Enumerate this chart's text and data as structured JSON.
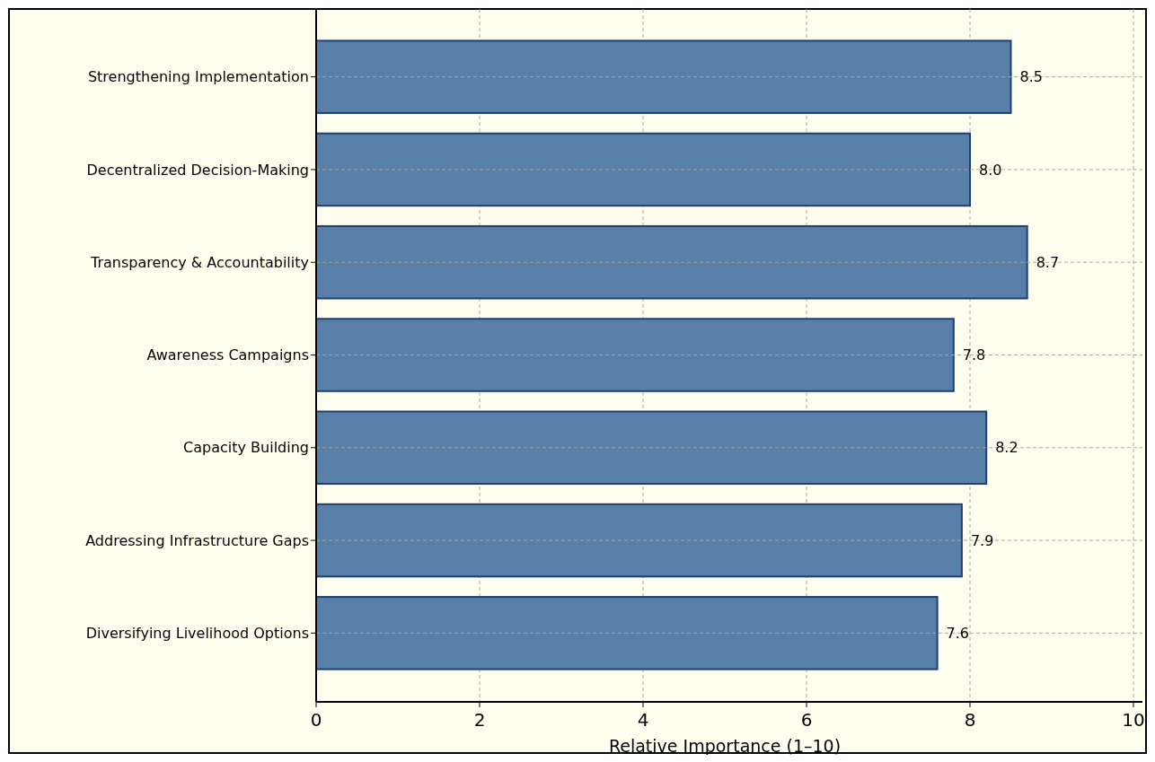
{
  "chart_data": {
    "type": "bar",
    "orientation": "horizontal",
    "xlabel": "Relative Importance (1–10)",
    "categories": [
      "Strengthening Implementation",
      "Decentralized Decision-Making",
      "Transparency & Accountability",
      "Awareness Campaigns",
      "Capacity Building",
      "Addressing Infrastructure Gaps",
      "Diversifying Livelihood Options"
    ],
    "values": [
      8.5,
      8.0,
      8.7,
      7.8,
      8.2,
      7.9,
      7.6
    ],
    "value_labels": [
      "8.5",
      "8.0",
      "8.7",
      "7.8",
      "8.2",
      "7.9",
      "7.6"
    ],
    "color": "#577fa8",
    "xlim": [
      0,
      10
    ],
    "xticks": [
      0,
      2,
      4,
      6,
      8,
      10
    ],
    "grid": true
  }
}
